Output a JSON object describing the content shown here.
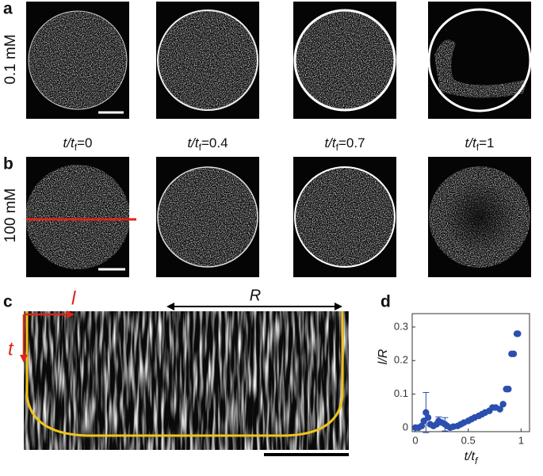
{
  "panels": {
    "a": "a",
    "b": "b",
    "c": "c",
    "d": "d"
  },
  "conditions": [
    "0.1 mM",
    "100 mM"
  ],
  "time_labels": [
    {
      "main": "t/t",
      "sub": "f",
      "rest": "=0"
    },
    {
      "main": "t/t",
      "sub": "f",
      "rest": "=0.4"
    },
    {
      "main": "t/t",
      "sub": "f",
      "rest": "=0.7"
    },
    {
      "main": "t/t",
      "sub": "f",
      "rest": "=1"
    }
  ],
  "kymograph": {
    "R": "R",
    "l": "l",
    "t": "t"
  },
  "chart_data": {
    "type": "scatter",
    "x": [
      0.0,
      0.03,
      0.06,
      0.08,
      0.1,
      0.12,
      0.14,
      0.17,
      0.2,
      0.22,
      0.25,
      0.28,
      0.3,
      0.33,
      0.36,
      0.4,
      0.43,
      0.46,
      0.5,
      0.53,
      0.56,
      0.6,
      0.63,
      0.66,
      0.7,
      0.73,
      0.76,
      0.8,
      0.83,
      0.86,
      0.88,
      0.91,
      0.93,
      0.96,
      0.97
    ],
    "values": [
      0,
      0,
      0.005,
      0.02,
      0.045,
      0.03,
      0.01,
      0.005,
      0.01,
      0.02,
      0.015,
      0.01,
      0.005,
      0,
      0.003,
      0.005,
      0.01,
      0.015,
      0.02,
      0.025,
      0.03,
      0.035,
      0.04,
      0.045,
      0.05,
      0.06,
      0.06,
      0.055,
      0.07,
      0.115,
      0.115,
      0.22,
      0.22,
      0.28,
      0.28
    ],
    "errors": [
      null,
      null,
      null,
      null,
      0.06,
      null,
      null,
      null,
      null,
      0.012,
      null,
      0.02,
      null,
      null,
      null,
      null,
      null,
      null,
      null,
      null,
      null,
      null,
      null,
      null,
      null,
      null,
      null,
      null,
      null,
      null,
      null,
      null,
      null,
      null,
      null
    ],
    "color": "#2b4fae",
    "xlim": [
      -0.03,
      1.08
    ],
    "ylim": [
      -0.012,
      0.34
    ],
    "xticks": [
      0,
      0.5,
      1
    ],
    "yticks": [
      0,
      0.1,
      0.2,
      0.3
    ],
    "ylabel": "l/R",
    "xlabel": "t/t",
    "xlabel_sub": "f"
  }
}
